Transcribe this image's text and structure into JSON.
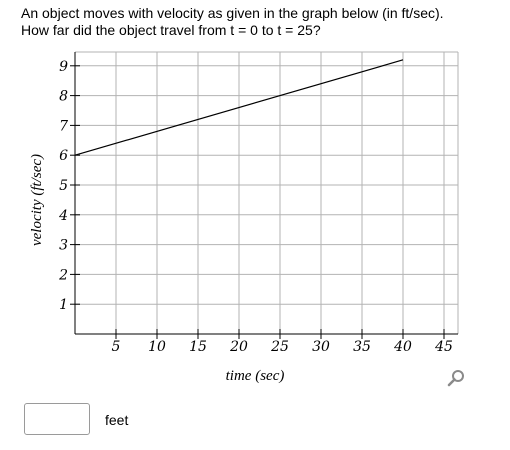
{
  "question": {
    "line1": "An object moves with velocity as given in the graph below (in ft/sec).",
    "line2": "How far did the object travel from t = 0 to t = 25?"
  },
  "chart_data": {
    "type": "line",
    "xlabel": "time (sec)",
    "ylabel": "velocity (ft/sec)",
    "xlim": [
      0,
      45
    ],
    "ylim": [
      0,
      9
    ],
    "xticks": [
      5,
      10,
      15,
      20,
      25,
      30,
      35,
      40,
      45
    ],
    "yticks": [
      1,
      2,
      3,
      4,
      5,
      6,
      7,
      8,
      9
    ],
    "grid": true,
    "series": [
      {
        "x": [
          0,
          40
        ],
        "y": [
          6,
          9.2
        ]
      }
    ],
    "colors": {
      "grid": "#b3b3b3",
      "axis": "#000000",
      "line": "#000000",
      "label_text": "#000000"
    }
  },
  "answer": {
    "value": "",
    "unit": "feet"
  },
  "icons": {
    "zoom": "magnifier-icon"
  }
}
